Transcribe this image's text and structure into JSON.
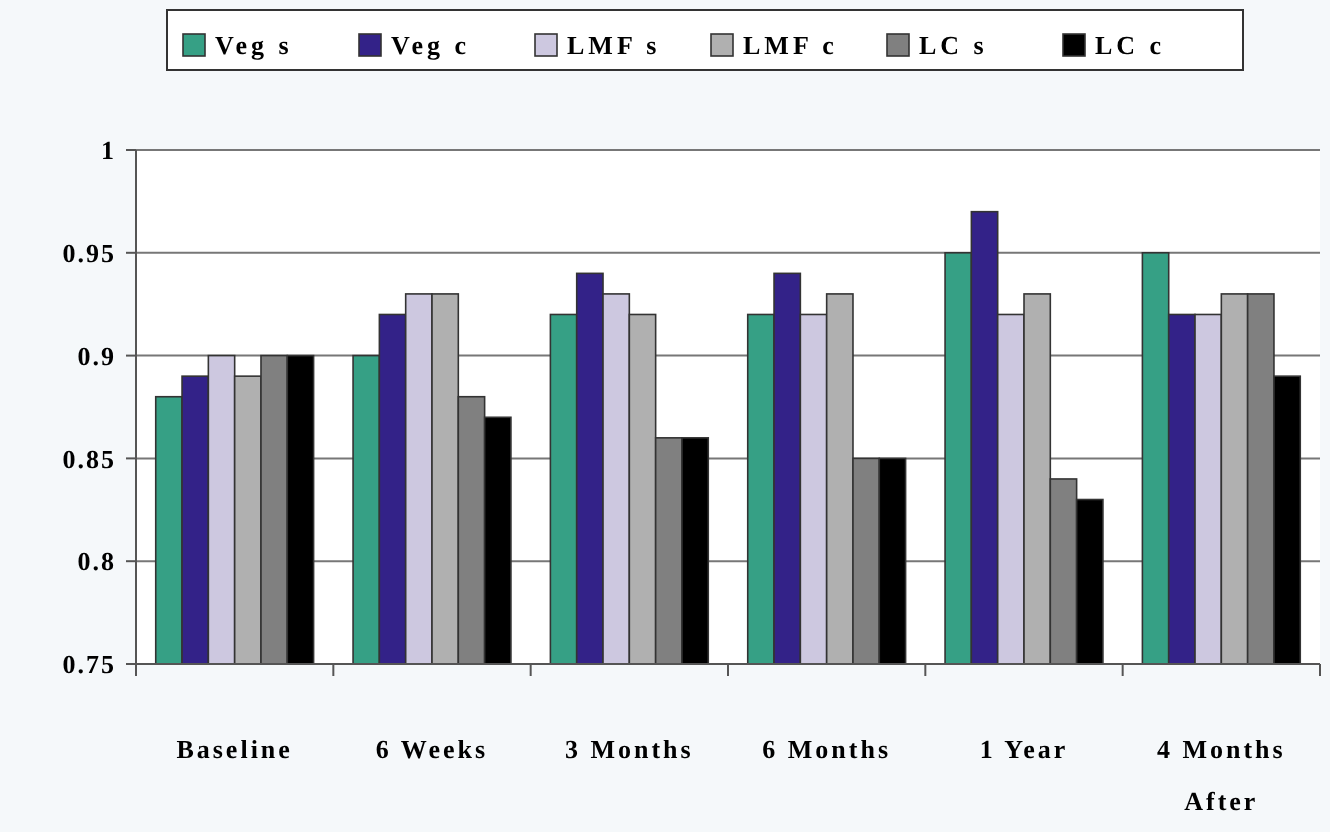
{
  "chart_data": {
    "type": "bar",
    "categories": [
      "Baseline",
      "6 Weeks",
      "3 Months",
      "6 Months",
      "1 Year",
      "4 Months After"
    ],
    "series": [
      {
        "name": "Veg s",
        "color": "#36a085",
        "values": [
          0.88,
          0.9,
          0.92,
          0.92,
          0.95,
          0.95
        ]
      },
      {
        "name": "Veg c",
        "color": "#332288",
        "values": [
          0.89,
          0.92,
          0.94,
          0.94,
          0.97,
          0.92
        ]
      },
      {
        "name": "LMF s",
        "color": "#cdc8e0",
        "values": [
          0.9,
          0.93,
          0.93,
          0.92,
          0.92,
          0.92
        ]
      },
      {
        "name": "LMF c",
        "color": "#b0b0b0",
        "values": [
          0.89,
          0.93,
          0.92,
          0.93,
          0.93,
          0.93
        ]
      },
      {
        "name": "LC s",
        "color": "#808080",
        "values": [
          0.9,
          0.88,
          0.86,
          0.85,
          0.84,
          0.93
        ]
      },
      {
        "name": "LC c",
        "color": "#000000",
        "values": [
          0.9,
          0.87,
          0.86,
          0.85,
          0.83,
          0.89
        ]
      }
    ],
    "ylim": [
      0.75,
      1
    ],
    "yticks": [
      0.75,
      0.8,
      0.85,
      0.9,
      0.95,
      1
    ],
    "grid": "y",
    "legend": "top"
  }
}
